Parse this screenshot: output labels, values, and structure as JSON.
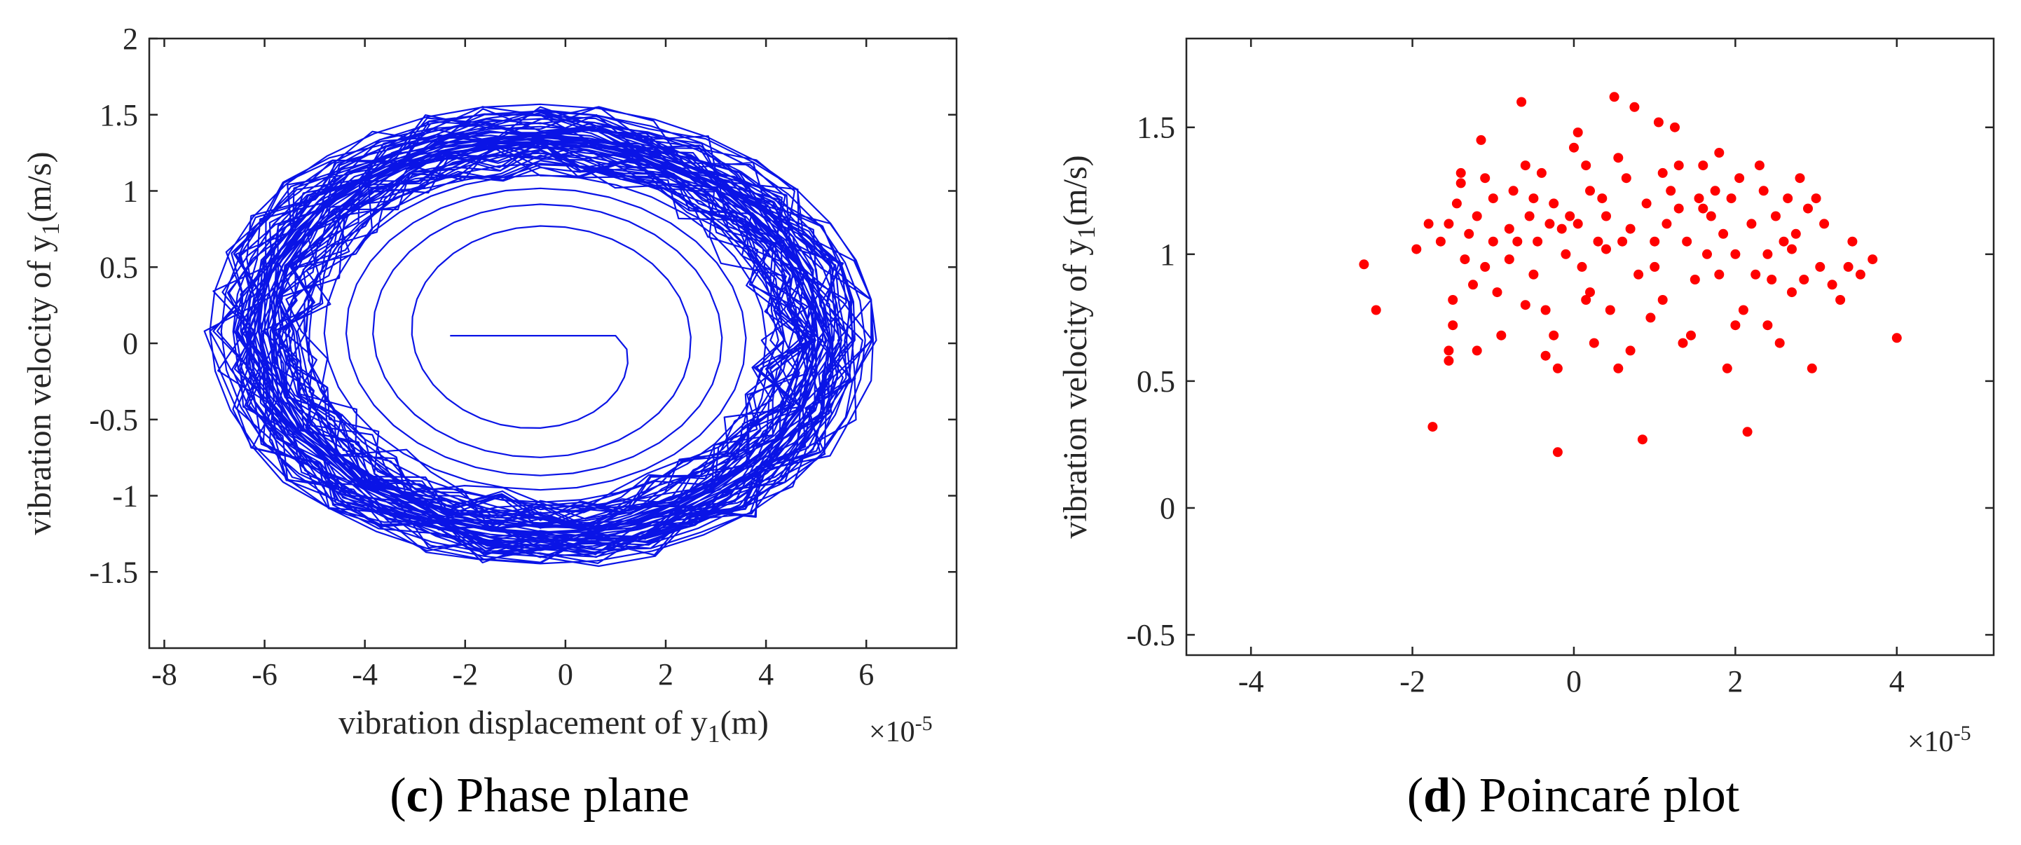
{
  "chart_data": [
    {
      "type": "line",
      "panel_label": "c",
      "caption": "Phase plane",
      "xlabel_main": "vibration displacement of y",
      "xlabel_sub": "1",
      "xlabel_unit": "(m)",
      "ylabel_main": "vibration velocity of y",
      "ylabel_sub": "1",
      "ylabel_unit": "(m/s)",
      "x_multiplier_base": "×10",
      "x_multiplier_exp": "-5",
      "xlim": [
        -8.3,
        7.8
      ],
      "ylim": [
        -2.0,
        2.0
      ],
      "xticks": [
        -8,
        -6,
        -4,
        -2,
        0,
        2,
        4,
        6
      ],
      "xtick_labels": [
        "-8",
        "-6",
        "-4",
        "-2",
        "0",
        "2",
        "4",
        "6"
      ],
      "yticks": [
        -1.5,
        -1,
        -0.5,
        0,
        0.5,
        1,
        1.5,
        2
      ],
      "ytick_labels": [
        "-1.5",
        "-1",
        "-0.5",
        "0",
        "0.5",
        "1",
        "1.5",
        "2"
      ],
      "line_color": "#0a14e6",
      "trajectory": {
        "description": "spiral orbits around (~-0.5e-5, 0.05)",
        "center_x": -0.5,
        "center_y": 0.05,
        "inner_amplitude_x": 1.5,
        "inner_amplitude_y": 0.45,
        "outer_amplitude_x": 6.7,
        "outer_amplitude_y": 1.53,
        "x_range": [
          -7.2,
          6.2
        ],
        "y_range": [
          -1.58,
          1.62
        ]
      }
    },
    {
      "type": "scatter",
      "panel_label": "d",
      "caption": "Poincaré plot",
      "ylabel_main": "vibration velocity of y",
      "ylabel_sub": "1",
      "ylabel_unit": "(m/s)",
      "x_multiplier_base": "×10",
      "x_multiplier_exp": "-5",
      "xlim": [
        -4.8,
        5.2
      ],
      "ylim": [
        -0.58,
        1.85
      ],
      "xticks": [
        -4,
        -2,
        0,
        2,
        4
      ],
      "xtick_labels": [
        "-4",
        "-2",
        "0",
        "2",
        "4"
      ],
      "yticks": [
        -0.5,
        0,
        0.5,
        1,
        1.5
      ],
      "ytick_labels": [
        "-0.5",
        "0",
        "0.5",
        "1",
        "1.5"
      ],
      "marker_color": "#ff0000",
      "points": [
        [
          -2.6,
          0.96
        ],
        [
          -2.45,
          0.78
        ],
        [
          -1.95,
          1.02
        ],
        [
          -1.8,
          1.12
        ],
        [
          -1.75,
          0.32
        ],
        [
          -1.65,
          1.05
        ],
        [
          -1.55,
          1.12
        ],
        [
          -1.55,
          0.62
        ],
        [
          -1.55,
          0.58
        ],
        [
          -1.5,
          0.72
        ],
        [
          -1.5,
          0.82
        ],
        [
          -1.45,
          1.2
        ],
        [
          -1.4,
          1.28
        ],
        [
          -1.4,
          1.32
        ],
        [
          -1.35,
          0.98
        ],
        [
          -1.3,
          1.08
        ],
        [
          -1.25,
          0.88
        ],
        [
          -1.2,
          1.15
        ],
        [
          -1.2,
          0.62
        ],
        [
          -1.15,
          1.45
        ],
        [
          -1.1,
          1.3
        ],
        [
          -1.1,
          0.95
        ],
        [
          -1.0,
          1.22
        ],
        [
          -0.95,
          0.85
        ],
        [
          -0.9,
          0.68
        ],
        [
          -0.8,
          0.98
        ],
        [
          -0.75,
          1.25
        ],
        [
          -0.7,
          1.05
        ],
        [
          -0.65,
          1.6
        ],
        [
          -0.6,
          0.8
        ],
        [
          -0.55,
          1.15
        ],
        [
          -0.5,
          1.22
        ],
        [
          -0.5,
          0.92
        ],
        [
          -0.45,
          1.05
        ],
        [
          -0.4,
          1.32
        ],
        [
          -0.35,
          0.6
        ],
        [
          -0.35,
          0.78
        ],
        [
          -0.3,
          1.12
        ],
        [
          -0.25,
          1.2
        ],
        [
          -0.25,
          0.68
        ],
        [
          -0.2,
          0.55
        ],
        [
          -0.2,
          0.22
        ],
        [
          -0.15,
          1.1
        ],
        [
          -0.1,
          1.0
        ],
        [
          -0.05,
          1.15
        ],
        [
          0.0,
          1.42
        ],
        [
          0.05,
          1.48
        ],
        [
          0.05,
          1.12
        ],
        [
          0.1,
          0.95
        ],
        [
          0.15,
          1.35
        ],
        [
          0.2,
          1.25
        ],
        [
          0.2,
          0.85
        ],
        [
          0.25,
          0.65
        ],
        [
          0.3,
          1.05
        ],
        [
          0.35,
          1.22
        ],
        [
          0.4,
          1.15
        ],
        [
          0.45,
          0.78
        ],
        [
          0.5,
          1.62
        ],
        [
          0.55,
          1.38
        ],
        [
          0.55,
          0.55
        ],
        [
          0.6,
          1.05
        ],
        [
          0.65,
          1.3
        ],
        [
          0.7,
          1.1
        ],
        [
          0.75,
          1.58
        ],
        [
          0.8,
          0.92
        ],
        [
          0.85,
          0.27
        ],
        [
          0.9,
          1.2
        ],
        [
          0.95,
          0.75
        ],
        [
          1.0,
          1.05
        ],
        [
          1.05,
          1.52
        ],
        [
          1.1,
          1.32
        ],
        [
          1.1,
          0.82
        ],
        [
          1.15,
          1.12
        ],
        [
          1.2,
          1.25
        ],
        [
          1.25,
          1.5
        ],
        [
          1.3,
          1.35
        ],
        [
          1.35,
          0.65
        ],
        [
          1.4,
          1.05
        ],
        [
          1.45,
          0.68
        ],
        [
          1.5,
          0.9
        ],
        [
          1.55,
          1.22
        ],
        [
          1.6,
          1.35
        ],
        [
          1.65,
          1.0
        ],
        [
          1.7,
          1.15
        ],
        [
          1.75,
          1.25
        ],
        [
          1.8,
          1.4
        ],
        [
          1.8,
          0.92
        ],
        [
          1.85,
          1.08
        ],
        [
          1.9,
          0.55
        ],
        [
          1.95,
          1.22
        ],
        [
          2.0,
          1.0
        ],
        [
          2.05,
          1.3
        ],
        [
          2.1,
          0.78
        ],
        [
          2.15,
          0.3
        ],
        [
          2.2,
          1.12
        ],
        [
          2.25,
          0.92
        ],
        [
          2.3,
          1.35
        ],
        [
          2.35,
          1.25
        ],
        [
          2.4,
          0.72
        ],
        [
          2.45,
          0.9
        ],
        [
          2.5,
          1.15
        ],
        [
          2.55,
          0.65
        ],
        [
          2.6,
          1.05
        ],
        [
          2.65,
          1.22
        ],
        [
          2.7,
          0.85
        ],
        [
          2.75,
          1.08
        ],
        [
          2.8,
          1.3
        ],
        [
          2.85,
          0.9
        ],
        [
          2.9,
          1.18
        ],
        [
          2.95,
          0.55
        ],
        [
          3.0,
          1.22
        ],
        [
          3.05,
          0.95
        ],
        [
          3.1,
          1.12
        ],
        [
          3.2,
          0.88
        ],
        [
          3.3,
          0.82
        ],
        [
          3.4,
          0.95
        ],
        [
          3.45,
          1.05
        ],
        [
          3.55,
          0.92
        ],
        [
          3.7,
          0.98
        ],
        [
          4.0,
          0.67
        ],
        [
          -0.8,
          1.1
        ],
        [
          -0.6,
          1.35
        ],
        [
          0.15,
          0.82
        ],
        [
          0.4,
          1.02
        ],
        [
          1.0,
          0.95
        ],
        [
          1.6,
          1.18
        ],
        [
          2.0,
          0.72
        ],
        [
          2.4,
          1.0
        ],
        [
          -1.0,
          1.05
        ],
        [
          0.7,
          0.62
        ],
        [
          1.3,
          1.18
        ],
        [
          2.7,
          1.02
        ]
      ]
    }
  ]
}
